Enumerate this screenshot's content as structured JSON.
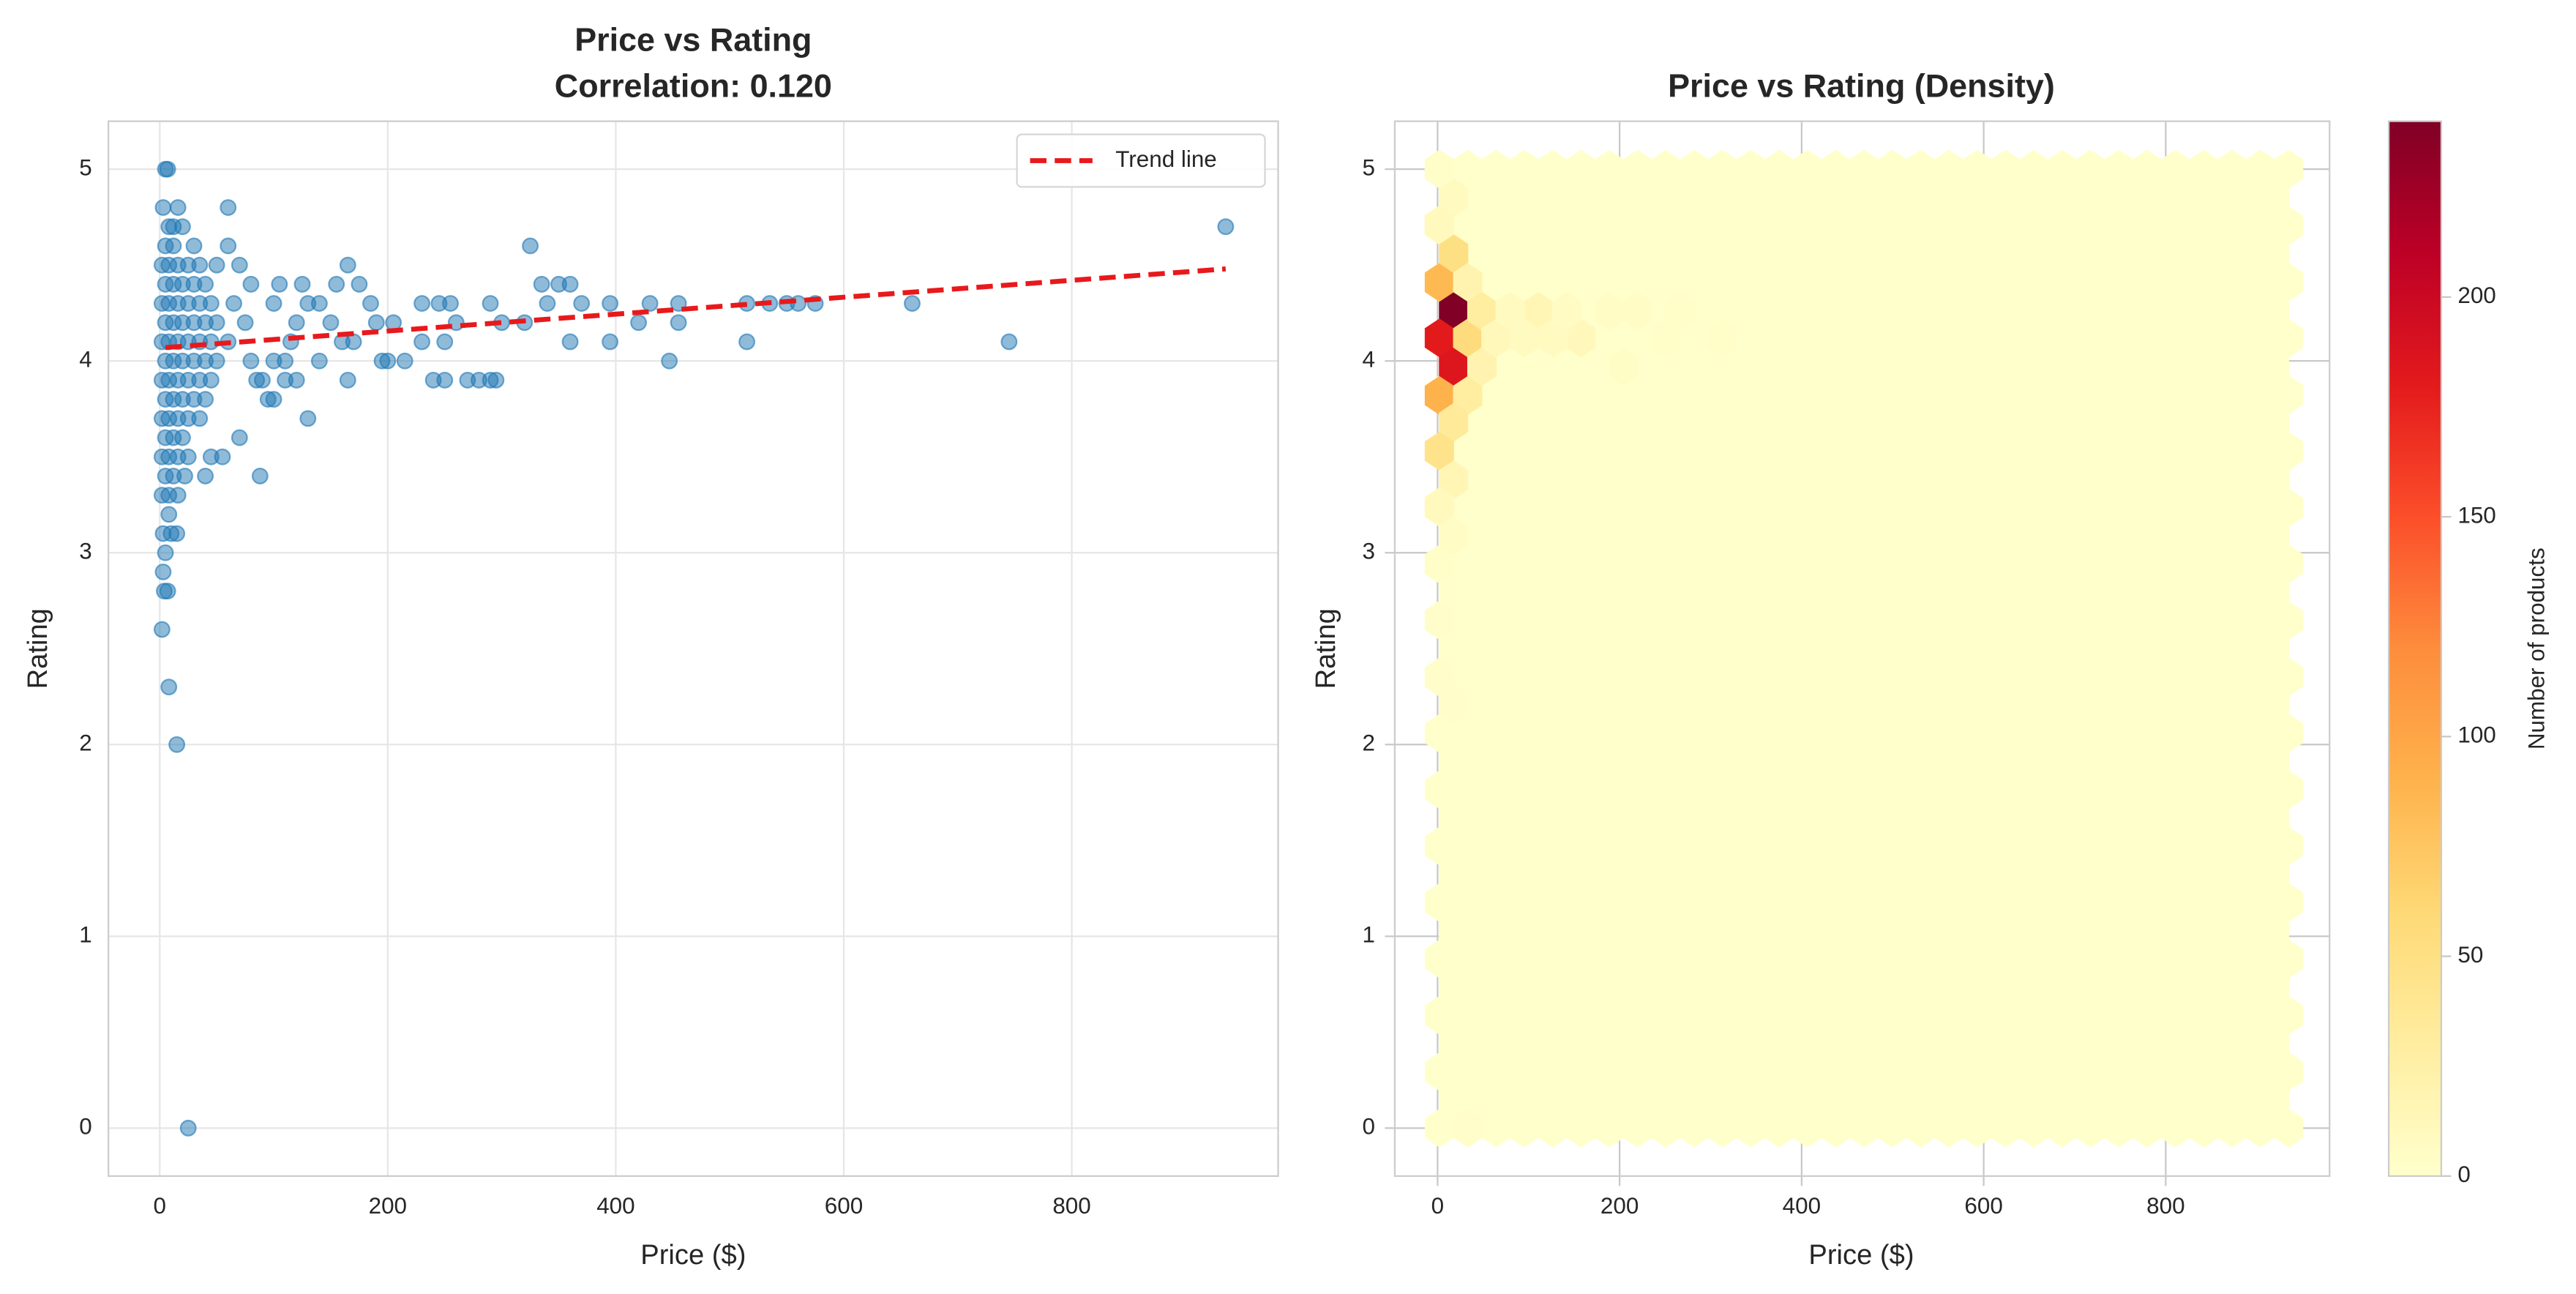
{
  "chart_data": [
    {
      "type": "scatter",
      "title": "Price vs Rating",
      "subtitle": "Correlation: 0.120",
      "xlabel": "Price ($)",
      "ylabel": "Rating",
      "xlim": [
        -45,
        981
      ],
      "ylim": [
        -0.25,
        5.25
      ],
      "xticks": [
        0,
        200,
        400,
        600,
        800
      ],
      "yticks": [
        0,
        1,
        2,
        3,
        4,
        5
      ],
      "grid": true,
      "legend": "upper right",
      "color": "#1f77b4",
      "alpha": 0.5,
      "x": [
        2,
        2,
        2,
        2,
        2,
        2,
        2,
        5,
        5,
        5,
        5,
        5,
        5,
        5,
        8,
        8,
        8,
        8,
        8,
        8,
        8,
        8,
        12,
        12,
        12,
        12,
        12,
        12,
        12,
        16,
        16,
        16,
        16,
        16,
        16,
        16,
        20,
        20,
        20,
        20,
        20,
        25,
        25,
        25,
        25,
        25,
        25,
        30,
        30,
        30,
        30,
        35,
        35,
        35,
        35,
        35,
        40,
        40,
        40,
        40,
        45,
        45,
        45,
        50,
        50,
        50,
        2,
        3,
        4,
        7,
        8,
        15,
        25,
        5,
        3,
        10,
        15,
        8,
        5,
        7,
        3,
        16,
        20,
        30,
        60,
        60,
        12,
        88,
        70,
        130,
        22,
        40,
        45,
        55,
        325,
        165,
        335,
        350,
        360,
        300,
        320,
        340,
        360,
        395,
        370,
        395,
        420,
        430,
        455,
        455,
        447,
        515,
        515,
        535,
        550,
        560,
        575,
        660,
        745,
        935,
        240,
        250,
        270,
        280,
        290,
        295,
        215,
        195,
        200,
        165,
        230,
        245,
        255,
        290,
        260,
        250,
        230,
        205,
        190,
        185,
        175,
        155,
        170,
        160,
        150,
        140,
        125,
        120,
        115,
        110,
        105,
        100,
        95,
        100,
        90,
        80,
        75,
        70,
        65,
        60,
        80,
        85,
        100,
        120,
        110,
        140,
        130
      ],
      "values": [
        3.3,
        3.5,
        3.7,
        3.9,
        4.1,
        4.3,
        4.5,
        3.4,
        3.6,
        3.8,
        4.0,
        4.2,
        4.4,
        4.6,
        3.3,
        3.5,
        3.7,
        3.9,
        4.1,
        4.3,
        4.5,
        4.7,
        3.4,
        3.6,
        3.8,
        4.0,
        4.2,
        4.4,
        4.6,
        3.3,
        3.5,
        3.7,
        3.9,
        4.1,
        4.3,
        4.5,
        3.6,
        3.8,
        4.0,
        4.2,
        4.4,
        3.5,
        3.7,
        3.9,
        4.1,
        4.3,
        4.5,
        3.8,
        4.0,
        4.2,
        4.4,
        3.7,
        3.9,
        4.1,
        4.3,
        4.5,
        3.8,
        4.0,
        4.2,
        4.4,
        3.9,
        4.1,
        4.3,
        4.0,
        4.2,
        4.5,
        2.6,
        2.9,
        2.8,
        2.8,
        2.3,
        2,
        0,
        3,
        3.1,
        3.1,
        3.1,
        3.2,
        5,
        5,
        4.8,
        4.8,
        4.7,
        4.6,
        4.8,
        4.6,
        4.7,
        3.4,
        3.6,
        3.7,
        3.4,
        3.4,
        3.5,
        3.5,
        4.6,
        4.5,
        4.4,
        4.4,
        4.4,
        4.2,
        4.2,
        4.3,
        4.1,
        4.1,
        4.3,
        4.3,
        4.2,
        4.3,
        4.3,
        4.2,
        4.0,
        4.3,
        4.1,
        4.3,
        4.3,
        4.3,
        4.3,
        4.3,
        4.1,
        4.7,
        3.9,
        3.9,
        3.9,
        3.9,
        3.9,
        3.9,
        4,
        4,
        4,
        3.9,
        4.3,
        4.3,
        4.3,
        4.3,
        4.2,
        4.1,
        4.1,
        4.2,
        4.2,
        4.3,
        4.4,
        4.4,
        4.1,
        4.1,
        4.2,
        4.3,
        4.4,
        4.2,
        4.1,
        4,
        4.4,
        4,
        3.8,
        3.8,
        3.9,
        4,
        4.2,
        4.5,
        4.3,
        4.1,
        4.4,
        3.9,
        4.3,
        3.9,
        3.9,
        4,
        4.3
      ],
      "trend": {
        "name": "Trend line",
        "color": "#e8191c",
        "x": [
          5,
          935
        ],
        "values": [
          4.07,
          4.48
        ]
      }
    },
    {
      "type": "hexbin",
      "title": "Price vs Rating (Density)",
      "xlabel": "Price ($)",
      "ylabel": "Rating",
      "xlim": [
        -47,
        980
      ],
      "ylim": [
        -0.25,
        5.25
      ],
      "xticks": [
        0,
        200,
        400,
        600,
        800
      ],
      "yticks": [
        0,
        1,
        2,
        3,
        4,
        5
      ],
      "grid": true,
      "gridsize": 30,
      "colorscale": [
        "#ffffcc",
        "#ffeda0",
        "#fed976",
        "#feb24c",
        "#fd8d3c",
        "#fc4e2a",
        "#e31a1c",
        "#bd0026",
        "#800026"
      ],
      "clim": [
        0,
        240
      ],
      "cticks": [
        0,
        50,
        100,
        150,
        200
      ],
      "colorbar_label": "Number of products",
      "x": [
        17.6,
        2,
        17.6,
        2,
        2,
        17.6,
        33.1,
        33.1,
        33.1,
        17.6,
        2,
        17.6,
        2,
        48.7,
        48.7,
        64.2,
        110.9,
        157.5,
        95.3,
        126.4,
        79.7,
        141.9,
        188.6,
        219.7,
        204.1,
        250.8,
        266.3,
        313,
        17.6,
        2,
        2,
        17.6,
        2,
        2,
        2,
        17.6,
        33.1
      ],
      "y": [
        4.26,
        4.12,
        3.97,
        3.82,
        4.41,
        4.56,
        4.12,
        4.41,
        3.82,
        3.68,
        3.53,
        3.38,
        3.24,
        4.26,
        3.97,
        4.12,
        4.26,
        4.12,
        4.12,
        4.12,
        4.26,
        4.26,
        4.26,
        4.26,
        3.97,
        4.12,
        4.26,
        4.12,
        4.85,
        4.71,
        5,
        3.09,
        2.94,
        2.65,
        2.35,
        2.21,
        0
      ],
      "values": [
        240,
        180,
        185,
        90,
        85,
        50,
        55,
        20,
        30,
        35,
        45,
        15,
        10,
        30,
        20,
        12,
        15,
        12,
        8,
        8,
        8,
        6,
        5,
        5,
        4,
        3,
        3,
        3,
        8,
        10,
        3,
        5,
        3,
        1,
        1,
        1,
        1
      ]
    }
  ]
}
